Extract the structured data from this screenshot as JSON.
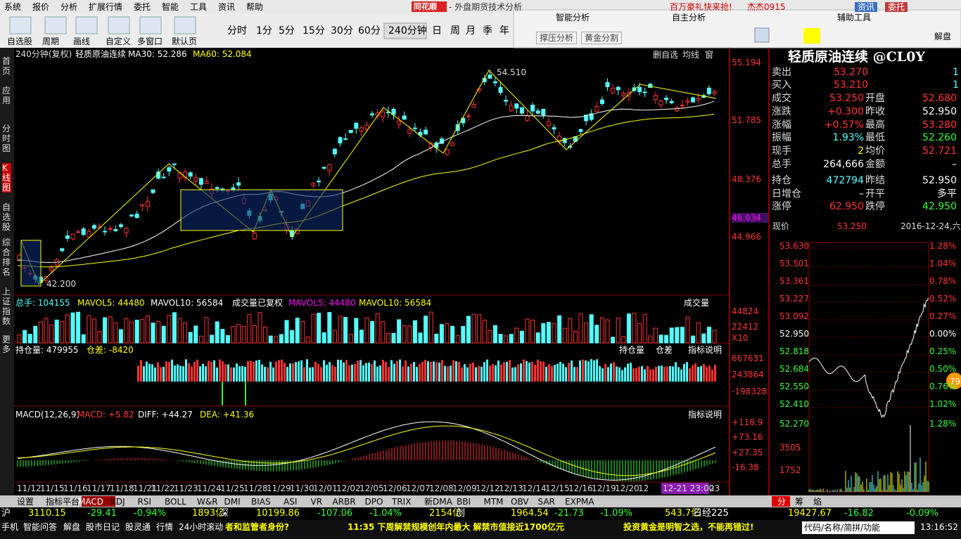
{
  "menu": [
    "系统",
    "报价",
    "分析",
    "扩展行情",
    "委托",
    "智能",
    "工具",
    "资讯",
    "帮助"
  ],
  "brand": "同花顺",
  "app_title": "- 外盘期货技术分析",
  "ad": "百万豪礼快来抢!",
  "user": "杰杰0915",
  "top_buttons": [
    "资讯",
    "委托"
  ],
  "toolbar": [
    "自选股",
    "周期",
    "画线",
    "自定义",
    "多窗口",
    "默认页"
  ],
  "periods": [
    "分时",
    "1分",
    "5分",
    "15分",
    "30分",
    "60分",
    "240分钟",
    "日",
    "周",
    "月",
    "季",
    "年"
  ],
  "panels": {
    "smart": "智能分析",
    "smart_buttons": [
      "撑压分析",
      "黄金分割"
    ],
    "own": "自主分析",
    "aux": "辅助工具",
    "jiepan": "解盘"
  },
  "sidebar": [
    "首页",
    "应用",
    "分时图",
    "K线图",
    "自选股",
    "综合排名",
    "上证指数",
    "更多"
  ],
  "kline": {
    "period": "240分钟(复权)",
    "name": "轻质原油连续",
    "ma30": "MA30: 52.286",
    "ma60": "MA60: 52.084",
    "buttons": [
      "删自选",
      "均线",
      "窗"
    ],
    "axis": [
      "55.194",
      "51.785",
      "48.376",
      "46.034",
      "44.966"
    ],
    "high": "54.510",
    "low": "42.200"
  },
  "volume": {
    "total": "总手: 104155",
    "mavol5": "MAVOL5: 44480",
    "mavol10": "MAVOL10: 56584",
    "adj": "成交量已复权",
    "mavol5b": "MAVOL5: 44480",
    "mavol10b": "MAVOL10: 56584",
    "selector": "成交量",
    "axis": [
      "44824",
      "22412",
      "X10"
    ]
  },
  "oi": {
    "total": "持仓量: 479955",
    "diff": "仓差: -8420",
    "check1": "持仓量",
    "check2": "仓差",
    "help": "指标说明",
    "axis": [
      "667631",
      "243864",
      "-198328"
    ]
  },
  "macd": {
    "name": "MACD(12,26,9)",
    "macd": "MACD: +5.82",
    "diff": "DIFF: +44.27",
    "dea": "DEA: +41.36",
    "help": "指标说明",
    "axis": [
      "+116.9",
      "+73.16",
      "+27.35",
      "-16.38"
    ]
  },
  "dates": [
    "11/12",
    "11/15",
    "11/16",
    "11/17",
    "11/18",
    "11/21",
    "11/22",
    "11/23",
    "11/24",
    "11/25",
    "11/28",
    "11/29",
    "11/30",
    "12/01",
    "12/02",
    "12/05",
    "12/06",
    "12/07",
    "12/08",
    "12/09",
    "12/12",
    "12/13",
    "12/14",
    "12/15",
    "12/16",
    "12/19",
    "12/20",
    "12",
    "12-21 23:00",
    "23"
  ],
  "tabs": [
    "设置",
    "指标平台",
    "MACD",
    "KDJ",
    "RSI",
    "BOLL",
    "W&R",
    "DMI",
    "BIAS",
    "ASI",
    "VR",
    "ARBR",
    "DPO",
    "TRIX",
    "新DMA",
    "BBI",
    "MTM",
    "OBV",
    "SAR",
    "EXPMA"
  ],
  "quote": {
    "title": "轻质原油连续 @CL0Y",
    "rows2": [
      [
        "卖出",
        "53.270",
        "1"
      ],
      [
        "买入",
        "53.210",
        "1"
      ]
    ],
    "rows4": [
      [
        "成交",
        "53.250",
        "开盘",
        "52.680"
      ],
      [
        "涨跌",
        "+0.300",
        "昨收",
        "52.950"
      ],
      [
        "涨幅",
        "+0.57%",
        "最高",
        "53.280"
      ],
      [
        "振幅",
        "1.93%",
        "最低",
        "52.260"
      ],
      [
        "现手",
        "2",
        "均价",
        "52.721"
      ],
      [
        "总手",
        "264,666",
        "金额",
        "–"
      ],
      [
        "持仓",
        "472794",
        "昨结",
        "52.950"
      ],
      [
        "日增仓",
        "–",
        "开平",
        "多平"
      ],
      [
        "涨停",
        "62.950",
        "跌停",
        "42.950"
      ]
    ],
    "now_label": "现价",
    "now": "53.250",
    "date": "2016-12-24,六"
  },
  "intraday": {
    "prices": [
      "53.630",
      "53.501",
      "53.361",
      "53.227",
      "53.092",
      "52.950",
      "52.818",
      "52.684",
      "52.550",
      "52.410",
      "52.270",
      "3505",
      "1752"
    ],
    "pcts": [
      "1.28%",
      "1.04%",
      "0.78%",
      "0.52%",
      "0.27%",
      "0.00%",
      "0.25%",
      "0.50%",
      "0.76%",
      "1.02%",
      "1.28%"
    ],
    "badge": "79",
    "tabs": [
      "分",
      "筹",
      "焰"
    ]
  },
  "status": [
    "沪",
    "3110.15",
    "-29.41",
    "-0.94%",
    "1893亿",
    "深",
    "10199.86",
    "-107.06",
    "-1.04%",
    "2154亿",
    "创",
    "1964.54",
    "-21.73",
    "-1.09%",
    "543.7亿",
    "日经225",
    "19427.67",
    "-16.82",
    "-0.09%"
  ],
  "bottom": {
    "links": [
      "手机",
      "智能问答",
      "解盘",
      "股市日记",
      "股灵通",
      "行情",
      "24小时滚动"
    ],
    "news1": "者和监管者身份?",
    "news2": "11:35 下周解禁规模创年内最大 解禁市值接近1700亿元",
    "news3": "投资黄金是明智之选，不能再错过!",
    "search": "代码/名称/简拼/功能",
    "time": "13:16:52"
  }
}
